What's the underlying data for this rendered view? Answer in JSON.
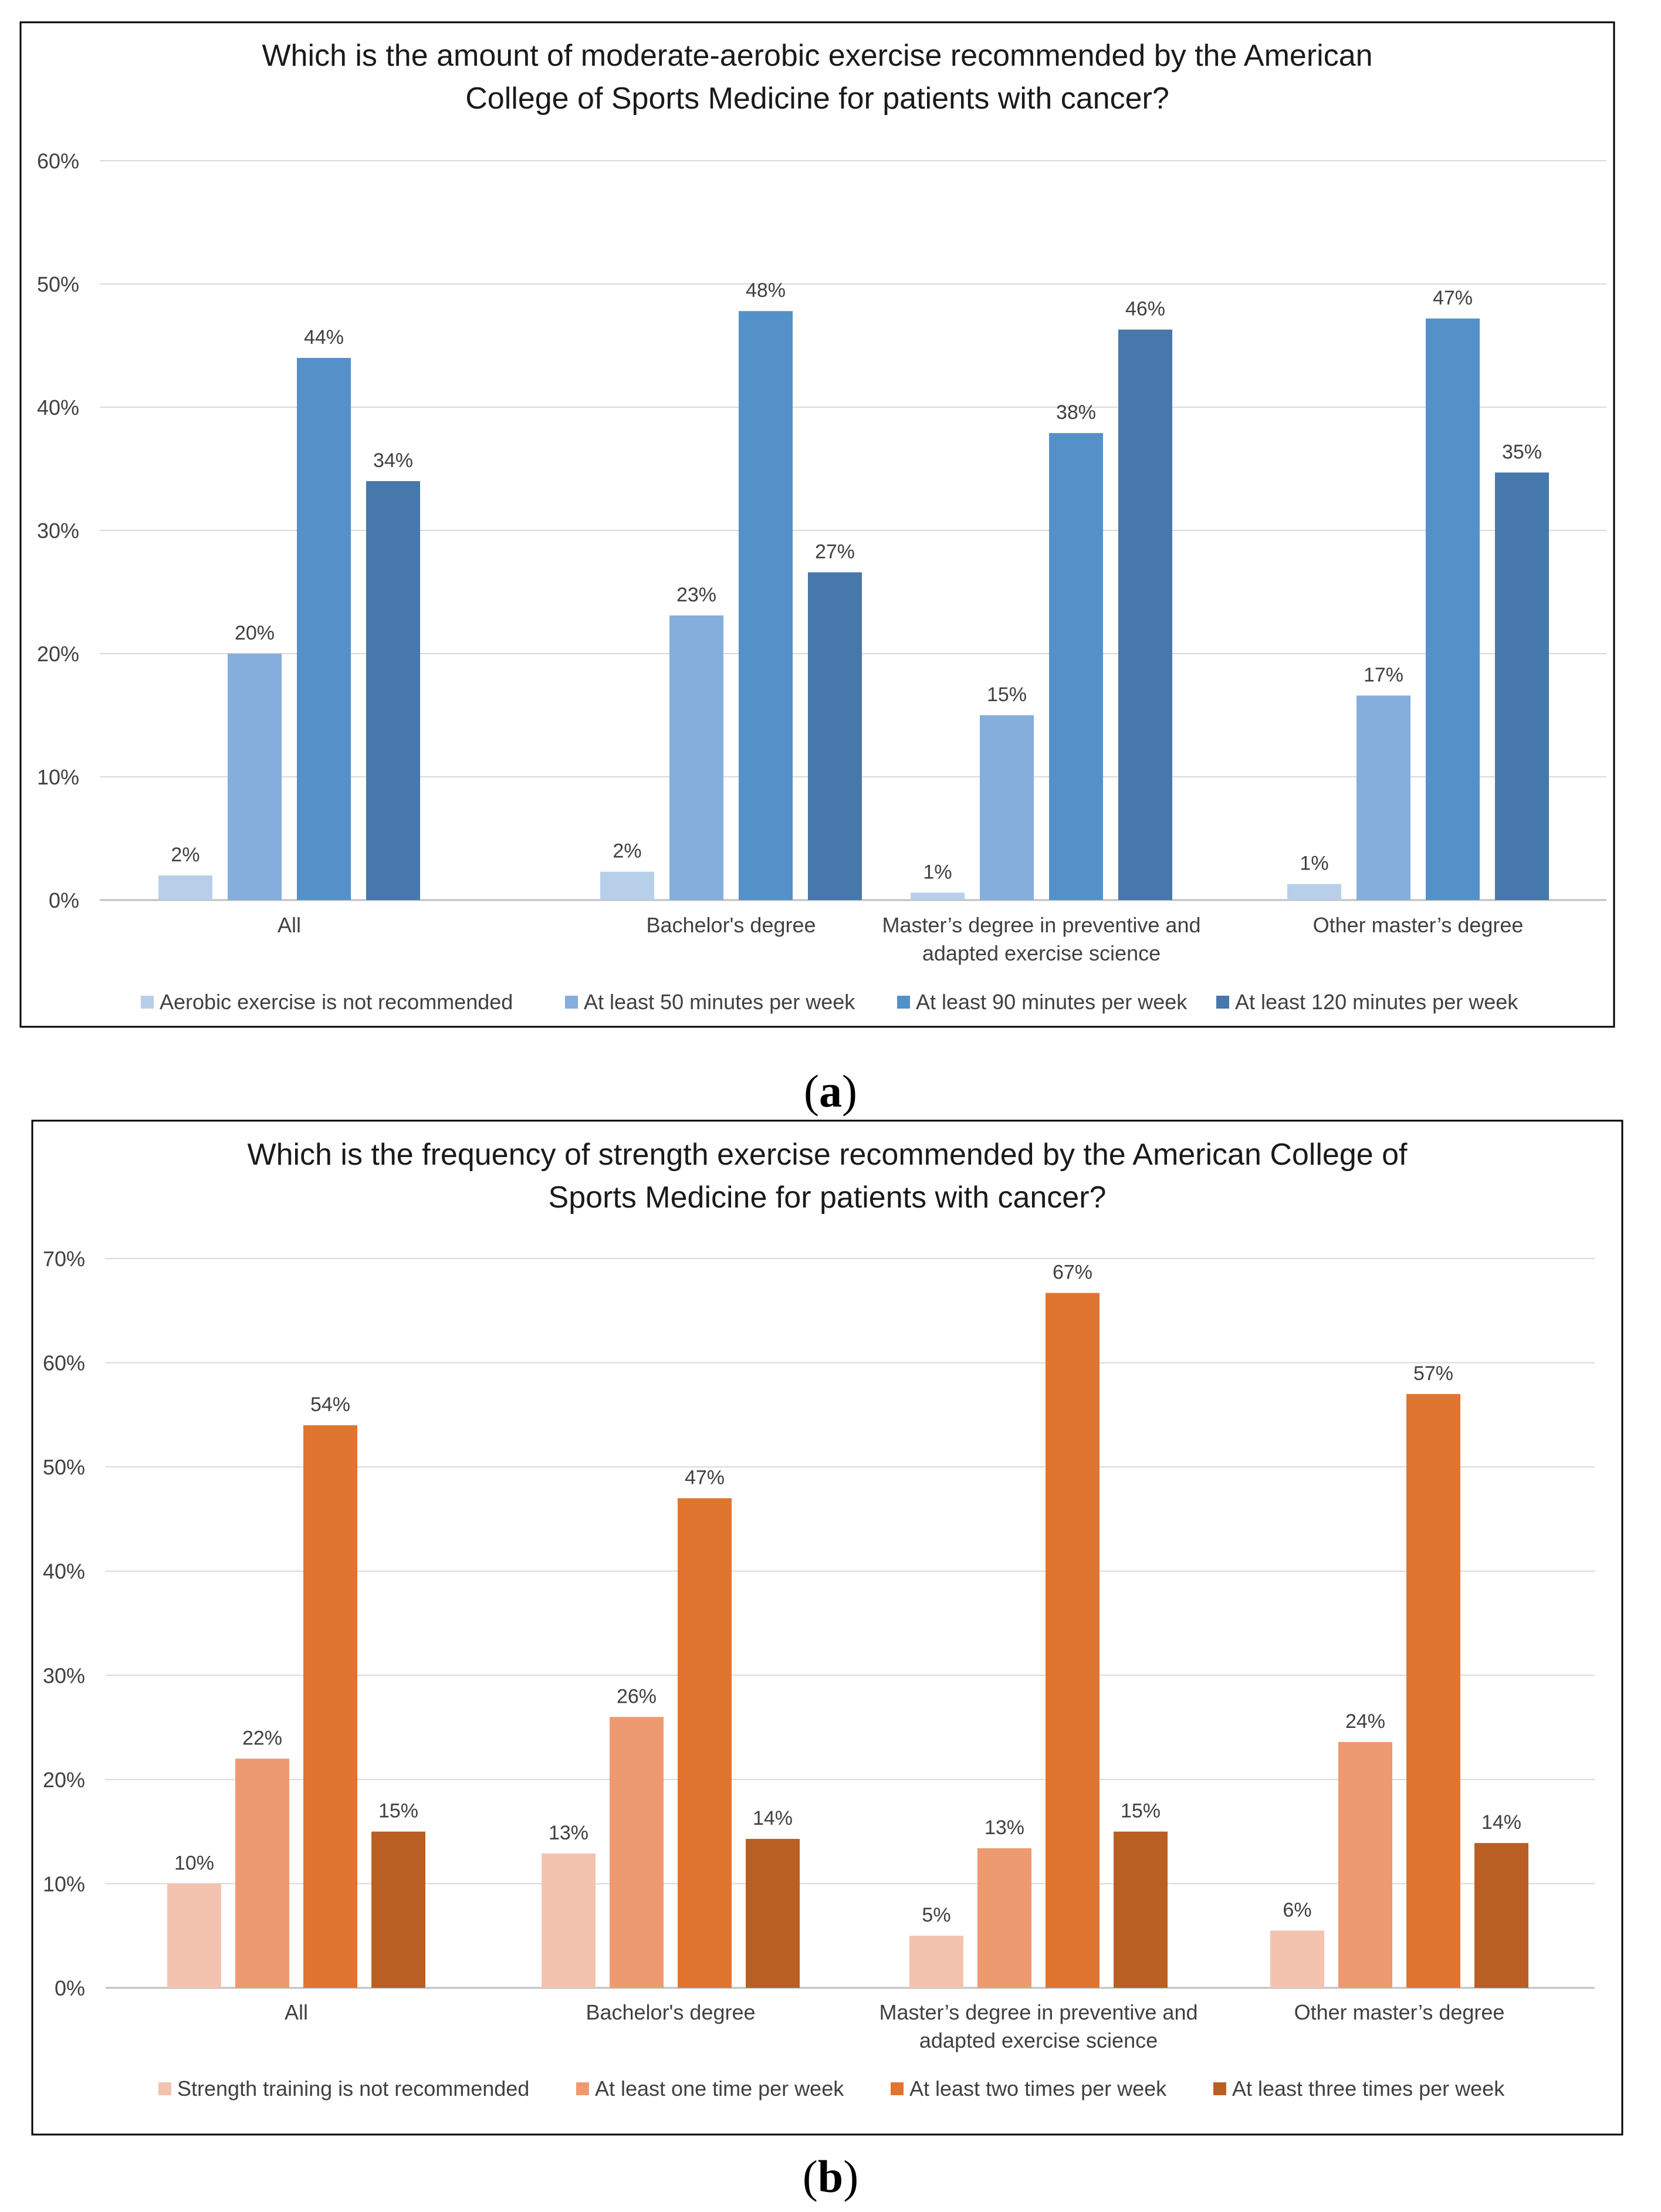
{
  "chart_data": [
    {
      "type": "bar",
      "title_lines": [
        "Which is the amount of moderate-aerobic exercise recommended by the American",
        "College of Sports Medicine for patients with cancer?"
      ],
      "categories": [
        [
          "All"
        ],
        [
          "Bachelor's degree"
        ],
        [
          "Master’s degree in preventive and",
          "adapted exercise science"
        ],
        [
          "Other master’s degree"
        ]
      ],
      "series": [
        {
          "name": "Aerobic exercise is not recommended",
          "values": [
            2,
            2.3,
            0.6,
            1.3
          ],
          "labels": [
            "2%",
            "2%",
            "1%",
            "1%"
          ],
          "color": "#B8CFE9"
        },
        {
          "name": "At least 50 minutes per week",
          "values": [
            20,
            23.1,
            15,
            16.6
          ],
          "labels": [
            "20%",
            "23%",
            "15%",
            "17%"
          ],
          "color": "#86AEDC"
        },
        {
          "name": "At least 90 minutes per week",
          "values": [
            44,
            47.8,
            37.9,
            47.2
          ],
          "labels": [
            "44%",
            "48%",
            "38%",
            "47%"
          ],
          "color": "#5591C9"
        },
        {
          "name": "At least 120 minutes per week",
          "values": [
            34,
            26.6,
            46.3,
            34.7
          ],
          "labels": [
            "34%",
            "27%",
            "46%",
            "35%"
          ],
          "color": "#4678AB"
        }
      ],
      "y_ticks": [
        "0%",
        "10%",
        "20%",
        "30%",
        "40%",
        "50%",
        "60%"
      ],
      "ylim": [
        0,
        60
      ],
      "panel_label": "a"
    },
    {
      "type": "bar",
      "title_lines": [
        "Which is the frequency of strength exercise recommended by the American College of",
        "Sports Medicine for patients with cancer?"
      ],
      "categories": [
        [
          "All"
        ],
        [
          "Bachelor's degree"
        ],
        [
          "Master’s degree in preventive and",
          "adapted exercise science"
        ],
        [
          "Other master’s degree"
        ]
      ],
      "series": [
        {
          "name": "Strength training is not recommended",
          "values": [
            10,
            12.9,
            5,
            5.5
          ],
          "labels": [
            "10%",
            "13%",
            "5%",
            "6%"
          ],
          "color": "#F4C3B0"
        },
        {
          "name": "At least one time per week",
          "values": [
            22,
            26,
            13.4,
            23.6
          ],
          "labels": [
            "22%",
            "26%",
            "13%",
            "24%"
          ],
          "color": "#EE9A70"
        },
        {
          "name": "At least two times per week",
          "values": [
            54,
            47,
            66.7,
            57
          ],
          "labels": [
            "54%",
            "47%",
            "67%",
            "57%"
          ],
          "color": "#E07530"
        },
        {
          "name": "At least three times per week",
          "values": [
            15,
            14.3,
            15,
            13.9
          ],
          "labels": [
            "15%",
            "14%",
            "15%",
            "14%"
          ],
          "color": "#BA5F24"
        }
      ],
      "y_ticks": [
        "0%",
        "10%",
        "20%",
        "30%",
        "40%",
        "50%",
        "60%",
        "70%"
      ],
      "ylim": [
        0,
        70
      ],
      "panel_label": "b"
    }
  ]
}
